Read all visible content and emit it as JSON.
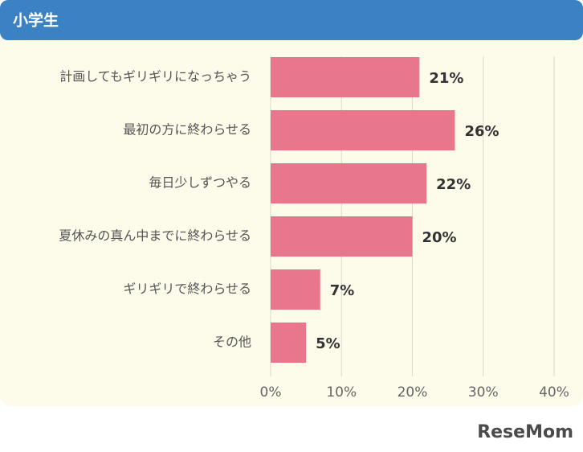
{
  "chart_data": {
    "type": "barh",
    "title": "小学生",
    "categories": [
      "計画してもギリギリになっちゃう",
      "最初の方に終わらせる",
      "毎日少しずつやる",
      "夏休みの真ん中までに終わらせる",
      "ギリギリで終わらせる",
      "その他"
    ],
    "values": [
      21,
      26,
      22,
      20,
      7,
      5
    ],
    "value_labels": [
      "21%",
      "26%",
      "22%",
      "20%",
      "7%",
      "5%"
    ],
    "color": "#e8768c",
    "xlim": [
      0,
      40
    ],
    "xticks": [
      {
        "value": 0,
        "label": "0%"
      },
      {
        "value": 10,
        "label": "10%"
      },
      {
        "value": 20,
        "label": "20%"
      },
      {
        "value": 30,
        "label": "30%"
      },
      {
        "value": 40,
        "label": "40%"
      }
    ],
    "grid": true
  },
  "watermark": "ReseMom"
}
